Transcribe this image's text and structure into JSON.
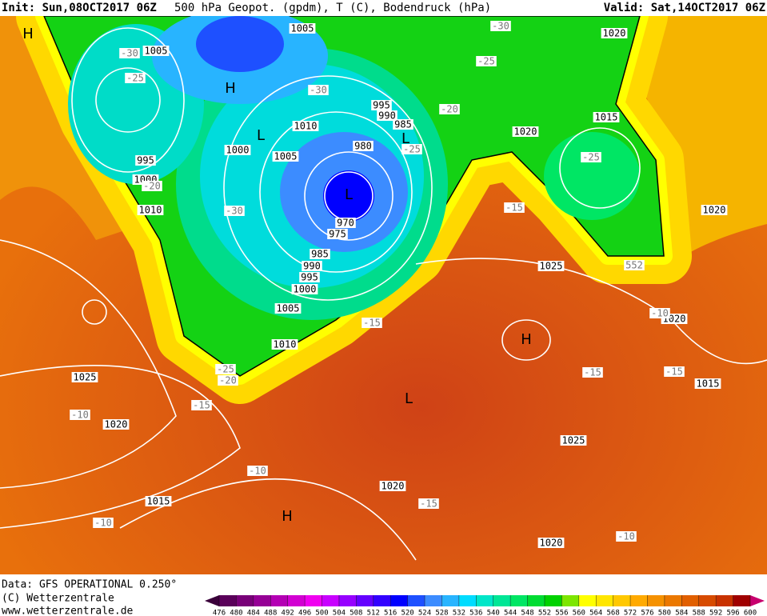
{
  "header": {
    "init": "Init: Sun,08OCT2017 06Z",
    "product": "500 hPa Geopot. (gpdm), T (C), Bodendruck (hPa)",
    "valid": "Valid: Sat,14OCT2017 06Z"
  },
  "footer": {
    "data": "Data: GFS OPERATIONAL 0.250°",
    "copyright": "(C) Wetterzentrale",
    "url": "www.wetterzentrale.de"
  },
  "colorbar": {
    "ticks": [
      476,
      480,
      484,
      488,
      492,
      496,
      500,
      504,
      508,
      512,
      516,
      520,
      524,
      528,
      532,
      536,
      540,
      544,
      548,
      552,
      556,
      560,
      564,
      568,
      572,
      576,
      580,
      584,
      588,
      592,
      596,
      600
    ],
    "colors": [
      "#3a003a",
      "#5a005a",
      "#780078",
      "#960096",
      "#b400b4",
      "#d200d2",
      "#f000f0",
      "#c800ff",
      "#9600ff",
      "#6400ff",
      "#3200ff",
      "#0000ff",
      "#1e50ff",
      "#3c8cff",
      "#28b4ff",
      "#00dcff",
      "#00e6c8",
      "#00e696",
      "#00e664",
      "#00dc32",
      "#00d200",
      "#7de600",
      "#ffff00",
      "#ffe600",
      "#ffc800",
      "#ffaa00",
      "#f59100",
      "#eb7800",
      "#e15f00",
      "#d74b00",
      "#c83200",
      "#a00000",
      "#c8006e"
    ]
  },
  "map": {
    "labels": [
      {
        "text": "1005",
        "kind": "isobar"
      },
      {
        "text": "1005",
        "kind": "isobar"
      },
      {
        "text": "995",
        "kind": "isobar"
      },
      {
        "text": "1000",
        "kind": "isobar"
      },
      {
        "text": "1010",
        "kind": "isobar"
      },
      {
        "text": "1010",
        "kind": "isobar"
      },
      {
        "text": "1000",
        "kind": "isobar"
      },
      {
        "text": "1005",
        "kind": "isobar"
      },
      {
        "text": "995",
        "kind": "isobar"
      },
      {
        "text": "990",
        "kind": "isobar"
      },
      {
        "text": "985",
        "kind": "isobar"
      },
      {
        "text": "980",
        "kind": "isobar"
      },
      {
        "text": "970",
        "kind": "isobar"
      },
      {
        "text": "975",
        "kind": "isobar"
      },
      {
        "text": "985",
        "kind": "isobar"
      },
      {
        "text": "990",
        "kind": "isobar"
      },
      {
        "text": "995",
        "kind": "isobar"
      },
      {
        "text": "1000",
        "kind": "isobar"
      },
      {
        "text": "1005",
        "kind": "isobar"
      },
      {
        "text": "1010",
        "kind": "isobar"
      },
      {
        "text": "1025",
        "kind": "isobar"
      },
      {
        "text": "1020",
        "kind": "isobar"
      },
      {
        "text": "1015",
        "kind": "isobar"
      },
      {
        "text": "1020",
        "kind": "isobar"
      },
      {
        "text": "1020",
        "kind": "isobar"
      },
      {
        "text": "1015",
        "kind": "isobar"
      },
      {
        "text": "1020",
        "kind": "isobar"
      },
      {
        "text": "1025",
        "kind": "isobar"
      },
      {
        "text": "1020",
        "kind": "isobar"
      },
      {
        "text": "1015",
        "kind": "isobar"
      },
      {
        "text": "1025",
        "kind": "isobar"
      },
      {
        "text": "1020",
        "kind": "isobar"
      },
      {
        "text": "1020",
        "kind": "isobar"
      },
      {
        "text": "-30",
        "kind": "temp"
      },
      {
        "text": "-25",
        "kind": "temp"
      },
      {
        "text": "-30",
        "kind": "temp"
      },
      {
        "text": "-20",
        "kind": "temp"
      },
      {
        "text": "-30",
        "kind": "temp"
      },
      {
        "text": "-25",
        "kind": "temp"
      },
      {
        "text": "-20",
        "kind": "temp"
      },
      {
        "text": "-30",
        "kind": "temp"
      },
      {
        "text": "-25",
        "kind": "temp"
      },
      {
        "text": "-25",
        "kind": "temp"
      },
      {
        "text": "-15",
        "kind": "temp"
      },
      {
        "text": "-15",
        "kind": "temp"
      },
      {
        "text": "-25",
        "kind": "temp"
      },
      {
        "text": "-20",
        "kind": "temp"
      },
      {
        "text": "-15",
        "kind": "temp"
      },
      {
        "text": "-10",
        "kind": "temp"
      },
      {
        "text": "-10",
        "kind": "temp"
      },
      {
        "text": "-10",
        "kind": "temp"
      },
      {
        "text": "-15",
        "kind": "temp"
      },
      {
        "text": "-15",
        "kind": "temp"
      },
      {
        "text": "-15",
        "kind": "temp"
      },
      {
        "text": "-10",
        "kind": "temp"
      },
      {
        "text": "-10",
        "kind": "temp"
      },
      {
        "text": "552",
        "kind": "temp"
      },
      {
        "text": "H",
        "kind": "center"
      },
      {
        "text": "H",
        "kind": "center"
      },
      {
        "text": "L",
        "kind": "center"
      },
      {
        "text": "L",
        "kind": "center"
      },
      {
        "text": "L",
        "kind": "center"
      },
      {
        "text": "H",
        "kind": "center"
      },
      {
        "text": "L",
        "kind": "center"
      },
      {
        "text": "H",
        "kind": "center"
      }
    ]
  }
}
